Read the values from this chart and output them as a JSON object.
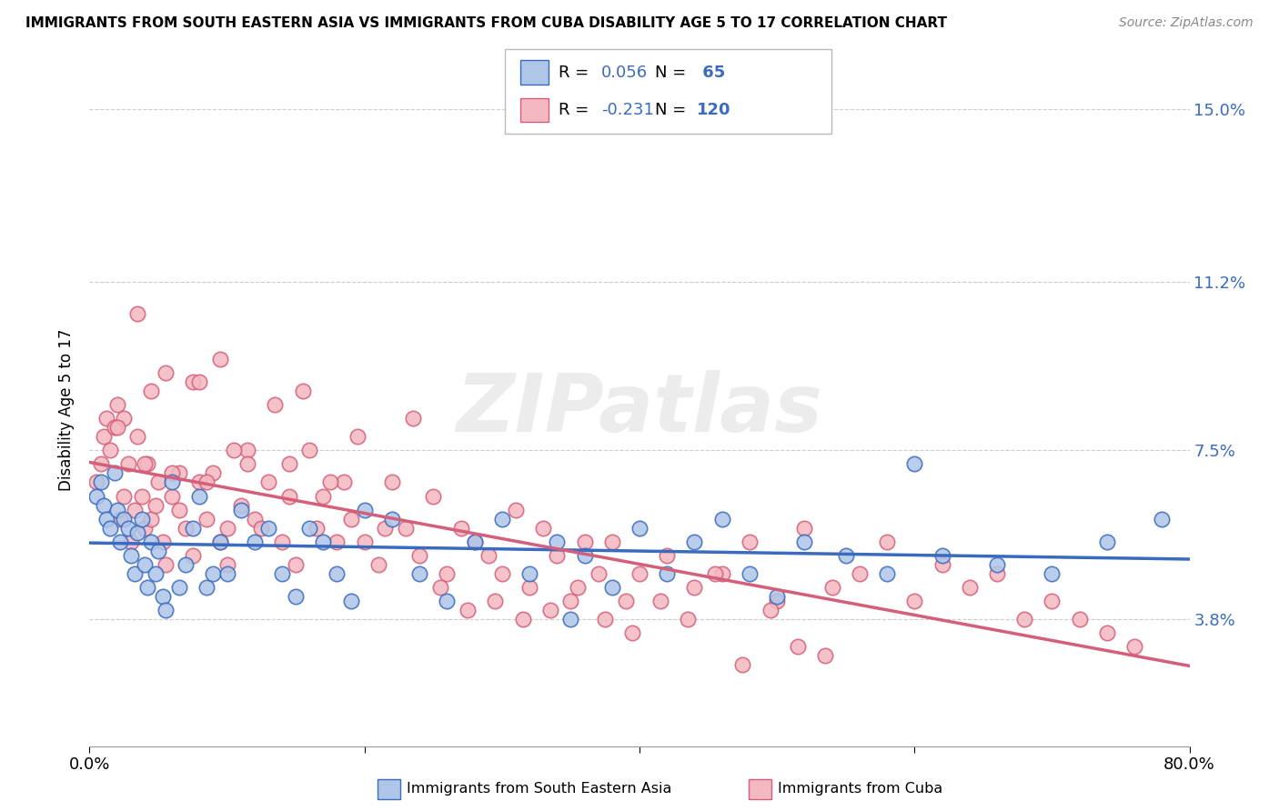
{
  "title": "IMMIGRANTS FROM SOUTH EASTERN ASIA VS IMMIGRANTS FROM CUBA DISABILITY AGE 5 TO 17 CORRELATION CHART",
  "source": "Source: ZipAtlas.com",
  "ylabel": "Disability Age 5 to 17",
  "xmin": 0.0,
  "xmax": 0.8,
  "ymin": 0.01,
  "ymax": 0.158,
  "yticks": [
    0.038,
    0.075,
    0.112,
    0.15
  ],
  "ytick_labels": [
    "3.8%",
    "7.5%",
    "11.2%",
    "15.0%"
  ],
  "xticks": [
    0.0,
    0.2,
    0.4,
    0.6,
    0.8
  ],
  "xtick_labels": [
    "0.0%",
    "",
    "",
    "",
    "80.0%"
  ],
  "color_blue": "#aec6e8",
  "color_pink": "#f4b8c1",
  "line_blue": "#3a6bbf",
  "line_pink": "#d45f7a",
  "R_blue": 0.056,
  "N_blue": 65,
  "R_pink": -0.231,
  "N_pink": 120,
  "background_color": "#ffffff",
  "grid_color": "#cccccc",
  "watermark_text": "ZIPatlas",
  "legend_text_color": "#3a6bbf",
  "blue_x": [
    0.005,
    0.008,
    0.01,
    0.012,
    0.015,
    0.018,
    0.02,
    0.022,
    0.025,
    0.028,
    0.03,
    0.033,
    0.035,
    0.038,
    0.04,
    0.042,
    0.045,
    0.048,
    0.05,
    0.053,
    0.055,
    0.06,
    0.065,
    0.07,
    0.075,
    0.08,
    0.085,
    0.09,
    0.095,
    0.1,
    0.11,
    0.12,
    0.13,
    0.14,
    0.15,
    0.16,
    0.17,
    0.18,
    0.19,
    0.2,
    0.22,
    0.24,
    0.26,
    0.28,
    0.3,
    0.32,
    0.34,
    0.36,
    0.38,
    0.4,
    0.42,
    0.44,
    0.46,
    0.48,
    0.5,
    0.52,
    0.55,
    0.58,
    0.62,
    0.66,
    0.7,
    0.74,
    0.78,
    0.6,
    0.35
  ],
  "blue_y": [
    0.065,
    0.068,
    0.063,
    0.06,
    0.058,
    0.07,
    0.062,
    0.055,
    0.06,
    0.058,
    0.052,
    0.048,
    0.057,
    0.06,
    0.05,
    0.045,
    0.055,
    0.048,
    0.053,
    0.043,
    0.04,
    0.068,
    0.045,
    0.05,
    0.058,
    0.065,
    0.045,
    0.048,
    0.055,
    0.048,
    0.062,
    0.055,
    0.058,
    0.048,
    0.043,
    0.058,
    0.055,
    0.048,
    0.042,
    0.062,
    0.06,
    0.048,
    0.042,
    0.055,
    0.06,
    0.048,
    0.055,
    0.052,
    0.045,
    0.058,
    0.048,
    0.055,
    0.06,
    0.048,
    0.043,
    0.055,
    0.052,
    0.048,
    0.052,
    0.05,
    0.048,
    0.055,
    0.06,
    0.072,
    0.038
  ],
  "pink_x": [
    0.005,
    0.008,
    0.01,
    0.012,
    0.015,
    0.018,
    0.02,
    0.022,
    0.025,
    0.028,
    0.03,
    0.033,
    0.035,
    0.038,
    0.04,
    0.042,
    0.045,
    0.048,
    0.05,
    0.053,
    0.055,
    0.06,
    0.065,
    0.07,
    0.075,
    0.08,
    0.085,
    0.09,
    0.095,
    0.1,
    0.11,
    0.115,
    0.12,
    0.13,
    0.14,
    0.145,
    0.15,
    0.16,
    0.165,
    0.17,
    0.18,
    0.185,
    0.19,
    0.2,
    0.21,
    0.22,
    0.23,
    0.24,
    0.25,
    0.26,
    0.27,
    0.28,
    0.29,
    0.3,
    0.31,
    0.32,
    0.33,
    0.34,
    0.35,
    0.36,
    0.37,
    0.38,
    0.39,
    0.4,
    0.42,
    0.44,
    0.46,
    0.48,
    0.5,
    0.52,
    0.54,
    0.56,
    0.58,
    0.6,
    0.62,
    0.64,
    0.66,
    0.68,
    0.7,
    0.72,
    0.74,
    0.76,
    0.035,
    0.055,
    0.075,
    0.095,
    0.115,
    0.135,
    0.155,
    0.175,
    0.195,
    0.215,
    0.235,
    0.255,
    0.275,
    0.295,
    0.315,
    0.335,
    0.355,
    0.375,
    0.395,
    0.415,
    0.435,
    0.455,
    0.475,
    0.495,
    0.515,
    0.535,
    0.025,
    0.045,
    0.065,
    0.085,
    0.105,
    0.125,
    0.145,
    0.02,
    0.04,
    0.06,
    0.08,
    0.1
  ],
  "pink_y": [
    0.068,
    0.072,
    0.078,
    0.082,
    0.075,
    0.08,
    0.085,
    0.06,
    0.065,
    0.072,
    0.055,
    0.062,
    0.078,
    0.065,
    0.058,
    0.072,
    0.06,
    0.063,
    0.068,
    0.055,
    0.05,
    0.065,
    0.07,
    0.058,
    0.052,
    0.068,
    0.06,
    0.07,
    0.055,
    0.05,
    0.063,
    0.075,
    0.06,
    0.068,
    0.055,
    0.072,
    0.05,
    0.075,
    0.058,
    0.065,
    0.055,
    0.068,
    0.06,
    0.055,
    0.05,
    0.068,
    0.058,
    0.052,
    0.065,
    0.048,
    0.058,
    0.055,
    0.052,
    0.048,
    0.062,
    0.045,
    0.058,
    0.052,
    0.042,
    0.055,
    0.048,
    0.055,
    0.042,
    0.048,
    0.052,
    0.045,
    0.048,
    0.055,
    0.042,
    0.058,
    0.045,
    0.048,
    0.055,
    0.042,
    0.05,
    0.045,
    0.048,
    0.038,
    0.042,
    0.038,
    0.035,
    0.032,
    0.105,
    0.092,
    0.09,
    0.095,
    0.072,
    0.085,
    0.088,
    0.068,
    0.078,
    0.058,
    0.082,
    0.045,
    0.04,
    0.042,
    0.038,
    0.04,
    0.045,
    0.038,
    0.035,
    0.042,
    0.038,
    0.048,
    0.028,
    0.04,
    0.032,
    0.03,
    0.082,
    0.088,
    0.062,
    0.068,
    0.075,
    0.058,
    0.065,
    0.08,
    0.072,
    0.07,
    0.09,
    0.058
  ]
}
